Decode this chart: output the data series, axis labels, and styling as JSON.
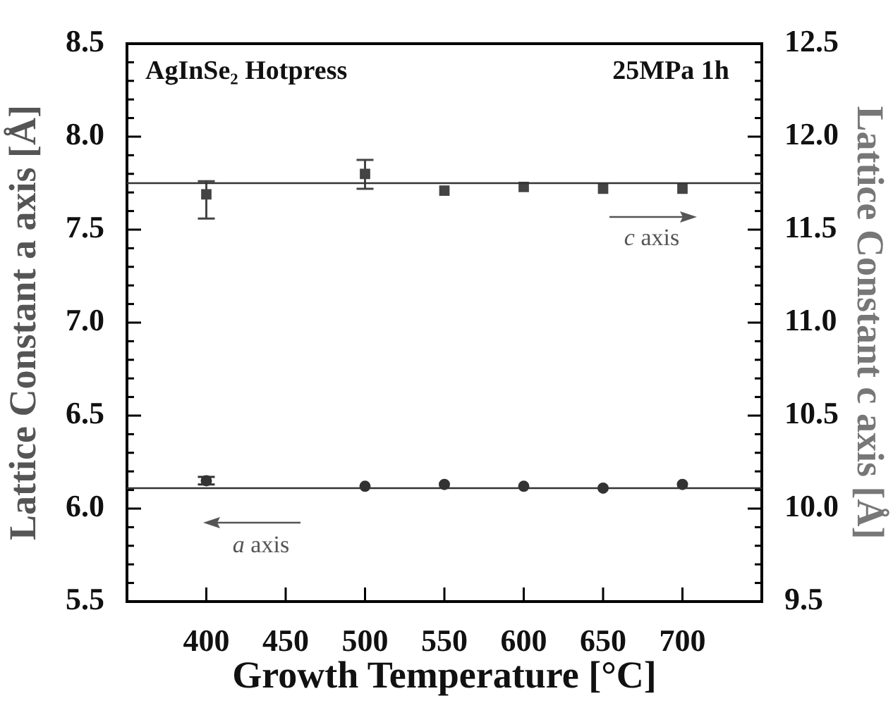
{
  "chart_data": {
    "type": "scatter",
    "xlabel": "Growth Temperature [°C]",
    "ylabel": "Lattice Constant a axis [Å]",
    "y2label": "Lattice Constant c axis [Å]",
    "annotations": [
      "AgInSe₂ Hotpress",
      "25MPa 1h",
      "c axis",
      "a axis"
    ],
    "x": [
      400,
      500,
      550,
      600,
      650,
      700
    ],
    "series": [
      {
        "color": "#333333",
        "marker": "circle",
        "values": [
          6.15,
          6.12,
          6.13,
          6.12,
          6.11,
          6.13
        ],
        "errors": [
          [
            6.13,
            6.17
          ],
          null,
          null,
          null,
          null,
          null
        ]
      },
      {
        "color": "#444444",
        "marker": "square",
        "axis": "y2",
        "values": [
          11.69,
          11.8,
          11.71,
          11.73,
          11.72,
          11.72
        ],
        "errors": [
          [
            11.56,
            11.76
          ],
          [
            11.72,
            11.875
          ],
          null,
          null,
          null,
          null
        ]
      }
    ],
    "ref_lines": [
      {
        "axis": "y",
        "value": 6.11,
        "color": "#333333"
      },
      {
        "axis": "y2",
        "value": 11.75,
        "color": "#333333"
      }
    ],
    "xlim": [
      350,
      750
    ],
    "xticks": [
      400,
      450,
      500,
      550,
      600,
      650,
      700
    ],
    "ylim": [
      5.5,
      8.5
    ],
    "yticks": [
      {
        "value": 5.5,
        "label": "5.5"
      },
      {
        "value": 5.6,
        "label": null
      },
      {
        "value": 5.7,
        "label": null
      },
      {
        "value": 5.8,
        "label": null
      },
      {
        "value": 5.9,
        "label": null
      },
      {
        "value": 6,
        "label": "6.0"
      },
      {
        "value": 6.1,
        "label": null
      },
      {
        "value": 6.2,
        "label": null
      },
      {
        "value": 6.3,
        "label": null
      },
      {
        "value": 6.4,
        "label": null
      },
      {
        "value": 6.5,
        "label": "6.5"
      },
      {
        "value": 6.6,
        "label": null
      },
      {
        "value": 6.7,
        "label": null
      },
      {
        "value": 6.8,
        "label": null
      },
      {
        "value": 6.9,
        "label": null
      },
      {
        "value": 7,
        "label": "7.0"
      },
      {
        "value": 7.1,
        "label": null
      },
      {
        "value": 7.2,
        "label": null
      },
      {
        "value": 7.3,
        "label": null
      },
      {
        "value": 7.4,
        "label": null
      },
      {
        "value": 7.5,
        "label": "7.5"
      },
      {
        "value": 7.6,
        "label": null
      },
      {
        "value": 7.7,
        "label": null
      },
      {
        "value": 7.8,
        "label": null
      },
      {
        "value": 7.9,
        "label": null
      },
      {
        "value": 8,
        "label": "8.0"
      },
      {
        "value": 8.1,
        "label": null
      },
      {
        "value": 8.2,
        "label": null
      },
      {
        "value": 8.3,
        "label": null
      },
      {
        "value": 8.4,
        "label": null
      },
      {
        "value": 8.5,
        "label": "8.5"
      }
    ],
    "y2lim": [
      9.5,
      12.5
    ],
    "y2ticks": [
      {
        "value": 9.5,
        "label": "9.5"
      },
      {
        "value": 9.6,
        "label": null
      },
      {
        "value": 9.7,
        "label": null
      },
      {
        "value": 9.8,
        "label": null
      },
      {
        "value": 9.9,
        "label": null
      },
      {
        "value": 10,
        "label": "10.0"
      },
      {
        "value": 10.1,
        "label": null
      },
      {
        "value": 10.2,
        "label": null
      },
      {
        "value": 10.3,
        "label": null
      },
      {
        "value": 10.4,
        "label": null
      },
      {
        "value": 10.5,
        "label": "10.5"
      },
      {
        "value": 10.6,
        "label": null
      },
      {
        "value": 10.7,
        "label": null
      },
      {
        "value": 10.8,
        "label": null
      },
      {
        "value": 10.9,
        "label": null
      },
      {
        "value": 11,
        "label": "11.0"
      },
      {
        "value": 11.1,
        "label": null
      },
      {
        "value": 11.2,
        "label": null
      },
      {
        "value": 11.3,
        "label": null
      },
      {
        "value": 11.4,
        "label": null
      },
      {
        "value": 11.5,
        "label": "11.5"
      },
      {
        "value": 11.6,
        "label": null
      },
      {
        "value": 11.7,
        "label": null
      },
      {
        "value": 11.8,
        "label": null
      },
      {
        "value": 11.9,
        "label": null
      },
      {
        "value": 12,
        "label": "12.0"
      },
      {
        "value": 12.1,
        "label": null
      },
      {
        "value": 12.2,
        "label": null
      },
      {
        "value": 12.3,
        "label": null
      },
      {
        "value": 12.4,
        "label": null
      },
      {
        "value": 12.5,
        "label": "12.5"
      }
    ]
  }
}
